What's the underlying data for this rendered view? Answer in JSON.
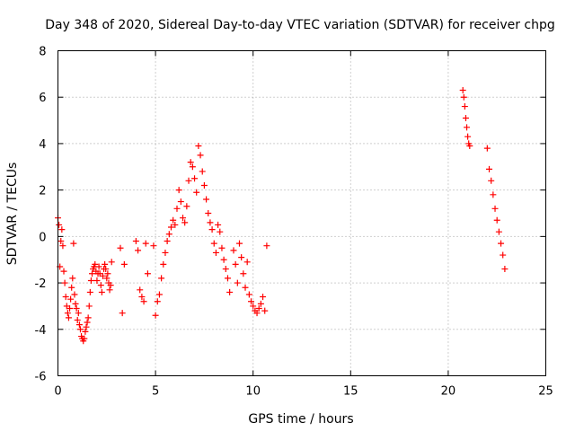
{
  "chart_data": {
    "type": "scatter",
    "title": "Day 348 of 2020, Sidereal Day-to-day VTEC variation (SDTVAR) for receiver chpg",
    "xlabel": "GPS time / hours",
    "ylabel": "SDTVAR / TECUs",
    "xlim": [
      0,
      25
    ],
    "ylim": [
      -6,
      8
    ],
    "xticks": [
      0,
      5,
      10,
      15,
      20,
      25
    ],
    "yticks": [
      -6,
      -4,
      -2,
      0,
      2,
      4,
      6,
      8
    ],
    "xtick_labels": [
      "0",
      "5",
      "10",
      "15",
      "20",
      "25"
    ],
    "ytick_labels": [
      "-6",
      "-4",
      "-2",
      "0",
      "2",
      "4",
      "6",
      "8"
    ],
    "grid": true,
    "marker": "+",
    "color": "#ff0000",
    "series": [
      {
        "name": "SDTVAR",
        "x": [
          0.0,
          0.05,
          0.1,
          0.15,
          0.2,
          0.25,
          0.3,
          0.35,
          0.4,
          0.45,
          0.5,
          0.55,
          0.6,
          0.65,
          0.7,
          0.75,
          0.8,
          0.85,
          0.9,
          0.95,
          1.0,
          1.05,
          1.1,
          1.15,
          1.2,
          1.25,
          1.3,
          1.35,
          1.4,
          1.45,
          1.5,
          1.55,
          1.6,
          1.65,
          1.7,
          1.75,
          1.8,
          1.85,
          1.9,
          1.95,
          2.0,
          2.05,
          2.1,
          2.15,
          2.2,
          2.25,
          2.3,
          2.35,
          2.4,
          2.45,
          2.5,
          2.55,
          2.6,
          2.65,
          2.7,
          2.75,
          3.2,
          3.3,
          3.4,
          4.0,
          4.1,
          4.2,
          4.3,
          4.4,
          4.5,
          4.6,
          4.9,
          5.0,
          5.1,
          5.2,
          5.3,
          5.4,
          5.5,
          5.6,
          5.7,
          5.8,
          5.9,
          6.0,
          6.1,
          6.2,
          6.3,
          6.4,
          6.5,
          6.6,
          6.7,
          6.8,
          6.9,
          7.0,
          7.1,
          7.2,
          7.3,
          7.4,
          7.5,
          7.6,
          7.7,
          7.8,
          7.9,
          8.0,
          8.1,
          8.2,
          8.3,
          8.4,
          8.5,
          8.6,
          8.7,
          8.8,
          9.0,
          9.1,
          9.2,
          9.3,
          9.4,
          9.5,
          9.6,
          9.7,
          9.8,
          9.9,
          10.0,
          10.1,
          10.2,
          10.3,
          10.4,
          10.5,
          10.6,
          10.7,
          20.75,
          20.8,
          20.85,
          20.9,
          20.95,
          21.0,
          21.05,
          21.1,
          22.0,
          22.1,
          22.2,
          22.3,
          22.4,
          22.5,
          22.6,
          22.7,
          22.8,
          22.9
        ],
        "y": [
          0.8,
          0.5,
          -1.3,
          -0.2,
          0.3,
          -0.4,
          -1.5,
          -2.0,
          -2.6,
          -3.0,
          -3.3,
          -3.5,
          -3.1,
          -2.7,
          -2.2,
          -1.8,
          -0.3,
          -2.5,
          -2.9,
          -3.1,
          -3.6,
          -3.3,
          -3.8,
          -4.0,
          -4.3,
          -4.4,
          -4.5,
          -4.4,
          -4.1,
          -3.9,
          -3.7,
          -3.5,
          -3.0,
          -2.4,
          -1.9,
          -1.6,
          -1.4,
          -1.3,
          -1.2,
          -1.5,
          -1.9,
          -1.6,
          -1.3,
          -1.6,
          -2.1,
          -2.4,
          -1.7,
          -1.4,
          -1.2,
          -1.4,
          -1.8,
          -1.6,
          -2.0,
          -2.3,
          -2.1,
          -1.1,
          -0.5,
          -3.3,
          -1.2,
          -0.2,
          -0.6,
          -2.3,
          -2.6,
          -2.8,
          -0.3,
          -1.6,
          -0.4,
          -3.4,
          -2.8,
          -2.5,
          -1.8,
          -1.2,
          -0.7,
          -0.2,
          0.1,
          0.4,
          0.7,
          0.5,
          1.2,
          2.0,
          1.5,
          0.8,
          0.6,
          1.3,
          2.4,
          3.2,
          3.0,
          2.5,
          1.9,
          3.9,
          3.5,
          2.8,
          2.2,
          1.6,
          1.0,
          0.6,
          0.3,
          -0.3,
          -0.7,
          0.5,
          0.2,
          -0.5,
          -1.0,
          -1.4,
          -1.8,
          -2.4,
          -0.6,
          -1.2,
          -2.0,
          -0.3,
          -0.9,
          -1.6,
          -2.2,
          -1.1,
          -2.5,
          -2.8,
          -3.0,
          -3.2,
          -3.3,
          -3.1,
          -2.9,
          -2.6,
          -3.2,
          -0.4,
          6.3,
          6.0,
          5.6,
          5.1,
          4.7,
          4.3,
          4.0,
          3.9,
          3.8,
          2.9,
          2.4,
          1.8,
          1.2,
          0.7,
          0.2,
          -0.3,
          -0.8,
          -1.4
        ]
      }
    ]
  }
}
